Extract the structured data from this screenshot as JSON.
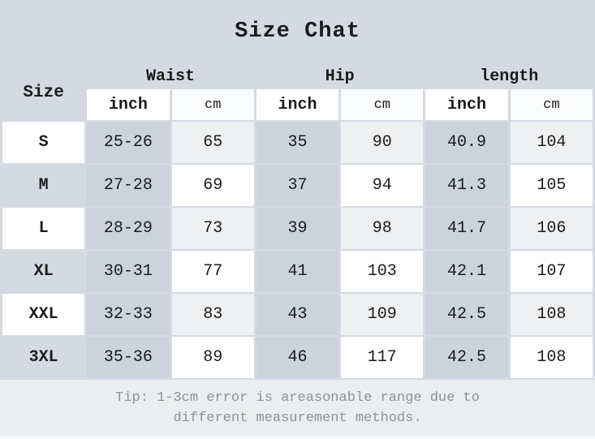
{
  "title": "Size Chat",
  "chart_data": {
    "type": "table",
    "title": "Size Chat",
    "corner_header": "Size",
    "group_headers": [
      "Waist",
      "Hip",
      "length"
    ],
    "unit_headers": [
      "inch",
      "cm"
    ],
    "columns": [
      "Size",
      "Waist inch",
      "Waist cm",
      "Hip inch",
      "Hip cm",
      "length inch",
      "length cm"
    ],
    "rows": [
      [
        "S",
        "25-26",
        "65",
        "35",
        "90",
        "40.9",
        "104"
      ],
      [
        "M",
        "27-28",
        "69",
        "37",
        "94",
        "41.3",
        "105"
      ],
      [
        "L",
        "28-29",
        "73",
        "39",
        "98",
        "41.7",
        "106"
      ],
      [
        "XL",
        "30-31",
        "77",
        "41",
        "103",
        "42.1",
        "107"
      ],
      [
        "XXL",
        "32-33",
        "83",
        "43",
        "109",
        "42.5",
        "108"
      ],
      [
        "3XL",
        "35-36",
        "89",
        "46",
        "117",
        "42.5",
        "108"
      ]
    ],
    "footnote": "Tip: 1-3cm error is areasonable range due to different measurement methods."
  },
  "footer": {
    "tip_line1": "Tip: 1-3cm error is areasonable range due to",
    "tip_line2": "different measurement methods."
  },
  "colors": {
    "bg": "#d5dae2",
    "cell_medium": "#ccd3dd",
    "cell_light": "#eef0f2",
    "cell_white": "#ffffff",
    "header_cm_bg": "#fbfcfd",
    "footer_bg": "#ebedee",
    "footer_strip": "#f6f7f8",
    "text": "#1b1b1b",
    "tip_text": "#8f9296"
  }
}
